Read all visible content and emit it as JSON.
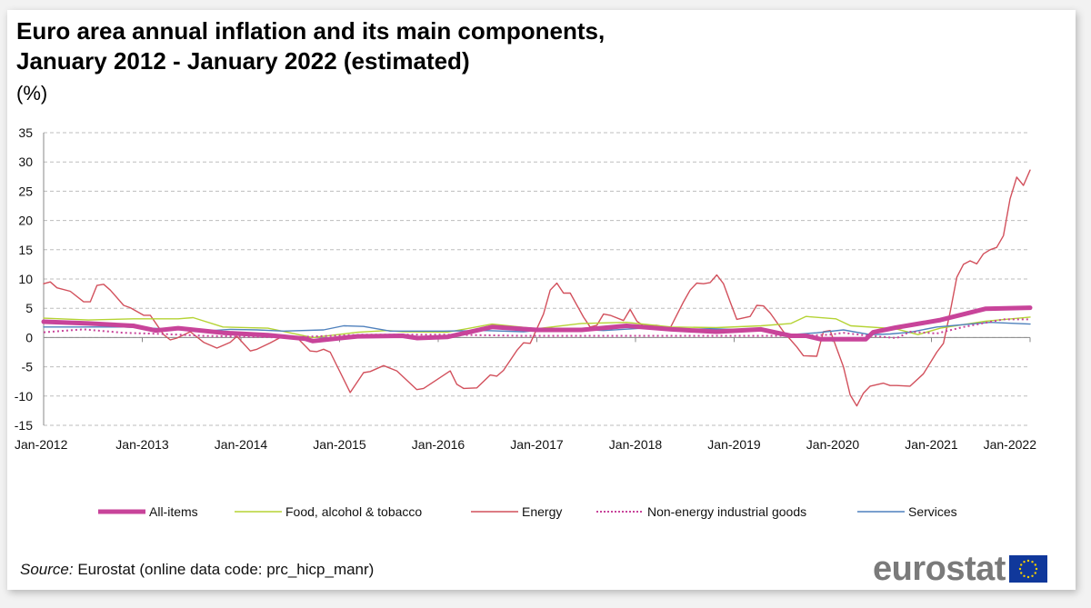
{
  "title_line1": "Euro area annual inflation and its main components,",
  "title_line2": "January 2012 - January 2022 (estimated)",
  "unit": "(%)",
  "source_label": "Source:",
  "source_text": " Eurostat (online data code: prc_hicp_manr)",
  "logo_text": "eurostat",
  "chart_data": {
    "type": "line",
    "title": "Euro area annual inflation and its main components, January 2012 - January 2022 (estimated)",
    "ylabel": "(%)",
    "xlabel": "",
    "ylim": [
      -15,
      35
    ],
    "yticks": [
      35,
      30,
      25,
      20,
      15,
      10,
      5,
      0,
      -5,
      -10,
      -15
    ],
    "xtick_labels": [
      "Jan-2012",
      "Jan-2013",
      "Jan-2014",
      "Jan-2015",
      "Jan-2016",
      "Jan-2017",
      "Jan-2018",
      "Jan-2019",
      "Jan-2020",
      "Jan-2021",
      "Jan-2022"
    ],
    "x_start": "2012-01",
    "x_end": "2022-01",
    "grid": true,
    "legend_position": "bottom",
    "series": [
      {
        "name": "All-items",
        "color": "#c8449a",
        "style": "thick",
        "anchors": [
          [
            0,
            2.7
          ],
          [
            6,
            2.4
          ],
          [
            12,
            2.0
          ],
          [
            15,
            1.2
          ],
          [
            18,
            1.6
          ],
          [
            24,
            0.8
          ],
          [
            30,
            0.4
          ],
          [
            35,
            -0.2
          ],
          [
            36,
            -0.6
          ],
          [
            42,
            0.2
          ],
          [
            48,
            0.3
          ],
          [
            50,
            -0.1
          ],
          [
            54,
            0.1
          ],
          [
            60,
            1.8
          ],
          [
            66,
            1.3
          ],
          [
            72,
            1.3
          ],
          [
            78,
            2.0
          ],
          [
            84,
            1.4
          ],
          [
            90,
            1.0
          ],
          [
            96,
            1.4
          ],
          [
            100,
            0.3
          ],
          [
            102,
            0.3
          ],
          [
            104,
            -0.3
          ],
          [
            110,
            -0.3
          ],
          [
            111,
            0.9
          ],
          [
            114,
            1.7
          ],
          [
            120,
            3.0
          ],
          [
            126,
            4.9
          ],
          [
            132,
            5.1
          ]
        ]
      },
      {
        "name": "Food, alcohol & tobacco",
        "color": "#b5d334",
        "style": "thin",
        "anchors": [
          [
            0,
            3.3
          ],
          [
            6,
            3.0
          ],
          [
            12,
            3.2
          ],
          [
            18,
            3.2
          ],
          [
            20,
            3.4
          ],
          [
            24,
            1.8
          ],
          [
            30,
            1.6
          ],
          [
            36,
            0.0
          ],
          [
            42,
            0.9
          ],
          [
            46,
            1.2
          ],
          [
            48,
            1.0
          ],
          [
            54,
            0.9
          ],
          [
            60,
            2.3
          ],
          [
            66,
            1.5
          ],
          [
            72,
            2.4
          ],
          [
            78,
            2.6
          ],
          [
            84,
            1.8
          ],
          [
            90,
            1.7
          ],
          [
            96,
            2.0
          ],
          [
            100,
            2.4
          ],
          [
            102,
            3.6
          ],
          [
            106,
            3.2
          ],
          [
            108,
            2.0
          ],
          [
            114,
            1.5
          ],
          [
            117,
            0.5
          ],
          [
            120,
            1.6
          ],
          [
            126,
            2.8
          ],
          [
            132,
            3.5
          ]
        ]
      },
      {
        "name": "Energy",
        "color": "#d2505c",
        "style": "thin",
        "anchors": [
          [
            0,
            9.2
          ],
          [
            1,
            9.5
          ],
          [
            2,
            8.5
          ],
          [
            4,
            7.9
          ],
          [
            6,
            6.1
          ],
          [
            7,
            6.1
          ],
          [
            8,
            8.9
          ],
          [
            9,
            9.1
          ],
          [
            10,
            8.1
          ],
          [
            12,
            5.5
          ],
          [
            13,
            5.1
          ],
          [
            15,
            3.8
          ],
          [
            16,
            3.8
          ],
          [
            18,
            0.5
          ],
          [
            19,
            -0.4
          ],
          [
            20,
            -0.1
          ],
          [
            22,
            1.0
          ],
          [
            24,
            -0.8
          ],
          [
            26,
            -1.8
          ],
          [
            28,
            -0.8
          ],
          [
            29,
            0.2
          ],
          [
            31,
            -2.3
          ],
          [
            32,
            -2.0
          ],
          [
            34,
            -0.9
          ],
          [
            36,
            0.3
          ],
          [
            38,
            0.0
          ],
          [
            40,
            -2.3
          ],
          [
            41,
            -2.4
          ],
          [
            42,
            -2.0
          ],
          [
            43,
            -2.5
          ],
          [
            46,
            -9.4
          ],
          [
            48,
            -6.0
          ],
          [
            49,
            -5.8
          ],
          [
            51,
            -4.8
          ],
          [
            53,
            -5.7
          ],
          [
            56,
            -8.9
          ],
          [
            57,
            -8.7
          ],
          [
            59,
            -7.2
          ],
          [
            61,
            -5.7
          ],
          [
            62,
            -8.0
          ],
          [
            63,
            -8.7
          ],
          [
            65,
            -8.6
          ],
          [
            67,
            -6.4
          ],
          [
            68,
            -6.6
          ],
          [
            69,
            -5.6
          ],
          [
            71,
            -2.2
          ],
          [
            72,
            -0.9
          ],
          [
            73,
            -1.0
          ],
          [
            75,
            4.0
          ],
          [
            76,
            8.1
          ],
          [
            77,
            9.3
          ],
          [
            78,
            7.6
          ],
          [
            79,
            7.6
          ],
          [
            81,
            3.5
          ],
          [
            82,
            1.8
          ],
          [
            83,
            2.1
          ],
          [
            84,
            4.0
          ],
          [
            85,
            3.8
          ],
          [
            87,
            2.9
          ],
          [
            88,
            4.8
          ],
          [
            89,
            2.8
          ],
          [
            90,
            2.0
          ],
          [
            92,
            2.1
          ],
          [
            94,
            1.6
          ],
          [
            96,
            6.1
          ],
          [
            97,
            8.1
          ],
          [
            98,
            9.3
          ],
          [
            99,
            9.2
          ],
          [
            100,
            9.4
          ],
          [
            101,
            10.7
          ],
          [
            102,
            9.2
          ],
          [
            103,
            6.1
          ],
          [
            104,
            3.1
          ],
          [
            106,
            3.6
          ],
          [
            107,
            5.5
          ],
          [
            108,
            5.4
          ],
          [
            109,
            4.2
          ],
          [
            111,
            1.0
          ],
          [
            113,
            -1.6
          ],
          [
            114,
            -3.1
          ],
          [
            116,
            -3.2
          ],
          [
            117,
            1.0
          ],
          [
            118,
            1.2
          ],
          [
            120,
            -5.0
          ],
          [
            121,
            -9.8
          ],
          [
            122,
            -11.7
          ],
          [
            123,
            -9.5
          ],
          [
            124,
            -8.3
          ],
          [
            126,
            -7.8
          ],
          [
            127,
            -8.2
          ],
          [
            128,
            -8.2
          ],
          [
            130,
            -8.3
          ],
          [
            132,
            -6.2
          ],
          [
            134,
            -2.5
          ],
          [
            135,
            -1.0
          ],
          [
            136,
            4.3
          ],
          [
            137,
            10.3
          ],
          [
            138,
            12.5
          ],
          [
            139,
            13.1
          ],
          [
            140,
            12.6
          ],
          [
            141,
            14.3
          ],
          [
            142,
            15.0
          ],
          [
            143,
            15.4
          ],
          [
            144,
            17.4
          ],
          [
            145,
            23.7
          ],
          [
            146,
            27.4
          ],
          [
            147,
            26.0
          ],
          [
            148,
            28.6
          ]
        ]
      },
      {
        "name": "Non-energy industrial goods",
        "color": "#c8449a",
        "style": "dotted",
        "anchors": [
          [
            0,
            0.9
          ],
          [
            6,
            1.4
          ],
          [
            12,
            0.8
          ],
          [
            18,
            0.6
          ],
          [
            24,
            0.3
          ],
          [
            36,
            0.0
          ],
          [
            48,
            0.5
          ],
          [
            60,
            0.5
          ],
          [
            72,
            0.3
          ],
          [
            84,
            0.3
          ],
          [
            96,
            0.3
          ],
          [
            108,
            0.3
          ],
          [
            114,
            0.3
          ],
          [
            118,
            0.5
          ],
          [
            120,
            0.8
          ],
          [
            123,
            0.4
          ],
          [
            128,
            -0.1
          ],
          [
            130,
            1.0
          ],
          [
            134,
            0.7
          ],
          [
            138,
            1.8
          ],
          [
            144,
            3.1
          ],
          [
            148,
            3.1
          ]
        ]
      },
      {
        "name": "Services",
        "color": "#4f81bd",
        "style": "thin",
        "anchors": [
          [
            0,
            1.8
          ],
          [
            12,
            1.8
          ],
          [
            16,
            1.6
          ],
          [
            20,
            1.4
          ],
          [
            24,
            1.1
          ],
          [
            28,
            1.4
          ],
          [
            32,
            1.3
          ],
          [
            36,
            1.1
          ],
          [
            42,
            1.3
          ],
          [
            45,
            2.0
          ],
          [
            48,
            1.9
          ],
          [
            52,
            1.1
          ],
          [
            60,
            1.1
          ],
          [
            66,
            1.2
          ],
          [
            72,
            1.0
          ],
          [
            75,
            1.3
          ],
          [
            78,
            1.5
          ],
          [
            84,
            1.2
          ],
          [
            90,
            1.6
          ],
          [
            96,
            1.4
          ],
          [
            100,
            1.5
          ],
          [
            106,
            1.3
          ],
          [
            108,
            1.2
          ],
          [
            112,
            0.5
          ],
          [
            116,
            0.8
          ],
          [
            120,
            1.3
          ],
          [
            124,
            0.5
          ],
          [
            127,
            0.6
          ],
          [
            130,
            0.9
          ],
          [
            134,
            1.8
          ],
          [
            138,
            2.2
          ],
          [
            142,
            2.6
          ],
          [
            146,
            2.4
          ],
          [
            148,
            2.3
          ]
        ]
      }
    ]
  }
}
